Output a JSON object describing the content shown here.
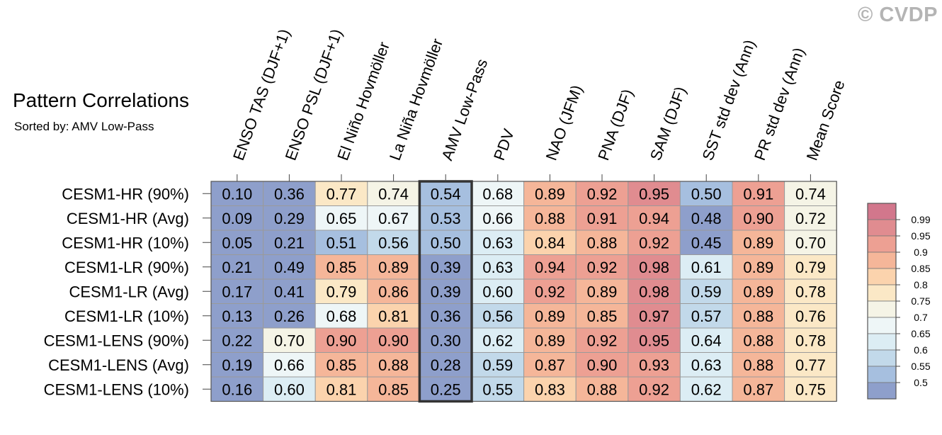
{
  "watermark": "© CVDP",
  "chart_data": {
    "type": "heatmap",
    "title": "Pattern Correlations",
    "subtitle": "Sorted by: AMV Low-Pass",
    "highlighted_column": "AMV Low-Pass",
    "columns": [
      "ENSO TAS (DJF+1)",
      "ENSO PSL (DJF+1)",
      "El Niño Hovmöller",
      "La Niña Hovmöller",
      "AMV Low-Pass",
      "PDV",
      "NAO (JFM)",
      "PNA (DJF)",
      "SAM (DJF)",
      "SST std dev (Ann)",
      "PR std dev (Ann)",
      "Mean Score"
    ],
    "rows": [
      "CESM1-HR (90%)",
      "CESM1-HR (Avg)",
      "CESM1-HR (10%)",
      "CESM1-LR (90%)",
      "CESM1-LR (Avg)",
      "CESM1-LR (10%)",
      "CESM1-LENS (90%)",
      "CESM1-LENS (Avg)",
      "CESM1-LENS (10%)"
    ],
    "values": [
      [
        "0.10",
        "0.36",
        "0.77",
        "0.74",
        "0.54",
        "0.68",
        "0.89",
        "0.92",
        "0.95",
        "0.50",
        "0.91",
        "0.74"
      ],
      [
        "0.09",
        "0.29",
        "0.65",
        "0.67",
        "0.53",
        "0.66",
        "0.88",
        "0.91",
        "0.94",
        "0.48",
        "0.90",
        "0.72"
      ],
      [
        "0.05",
        "0.21",
        "0.51",
        "0.56",
        "0.50",
        "0.63",
        "0.84",
        "0.88",
        "0.92",
        "0.45",
        "0.89",
        "0.70"
      ],
      [
        "0.21",
        "0.49",
        "0.85",
        "0.89",
        "0.39",
        "0.63",
        "0.94",
        "0.92",
        "0.98",
        "0.61",
        "0.89",
        "0.79"
      ],
      [
        "0.17",
        "0.41",
        "0.79",
        "0.86",
        "0.39",
        "0.60",
        "0.92",
        "0.89",
        "0.98",
        "0.59",
        "0.89",
        "0.78"
      ],
      [
        "0.13",
        "0.26",
        "0.68",
        "0.81",
        "0.36",
        "0.56",
        "0.89",
        "0.85",
        "0.97",
        "0.57",
        "0.88",
        "0.76"
      ],
      [
        "0.22",
        "0.70",
        "0.90",
        "0.90",
        "0.30",
        "0.62",
        "0.89",
        "0.92",
        "0.95",
        "0.64",
        "0.88",
        "0.78"
      ],
      [
        "0.19",
        "0.66",
        "0.85",
        "0.88",
        "0.28",
        "0.59",
        "0.87",
        "0.90",
        "0.93",
        "0.63",
        "0.88",
        "0.77"
      ],
      [
        "0.16",
        "0.60",
        "0.81",
        "0.85",
        "0.25",
        "0.55",
        "0.83",
        "0.88",
        "0.92",
        "0.62",
        "0.87",
        "0.75"
      ]
    ],
    "colorbar": {
      "levels": [
        "0.99",
        "0.95",
        "0.9",
        "0.85",
        "0.8",
        "0.75",
        "0.7",
        "0.65",
        "0.6",
        "0.55",
        "0.5"
      ],
      "thresholds": [
        0.5,
        0.55,
        0.6,
        0.65,
        0.7,
        0.75,
        0.8,
        0.85,
        0.9,
        0.95,
        0.99
      ],
      "colors": [
        "#8e9fcb",
        "#a6bfdf",
        "#c2d9ea",
        "#dcedf4",
        "#eef6f7",
        "#f5f4e6",
        "#fbe8c6",
        "#fbd3ad",
        "#f5b699",
        "#eda093",
        "#e08c90",
        "#d2778c"
      ]
    }
  }
}
